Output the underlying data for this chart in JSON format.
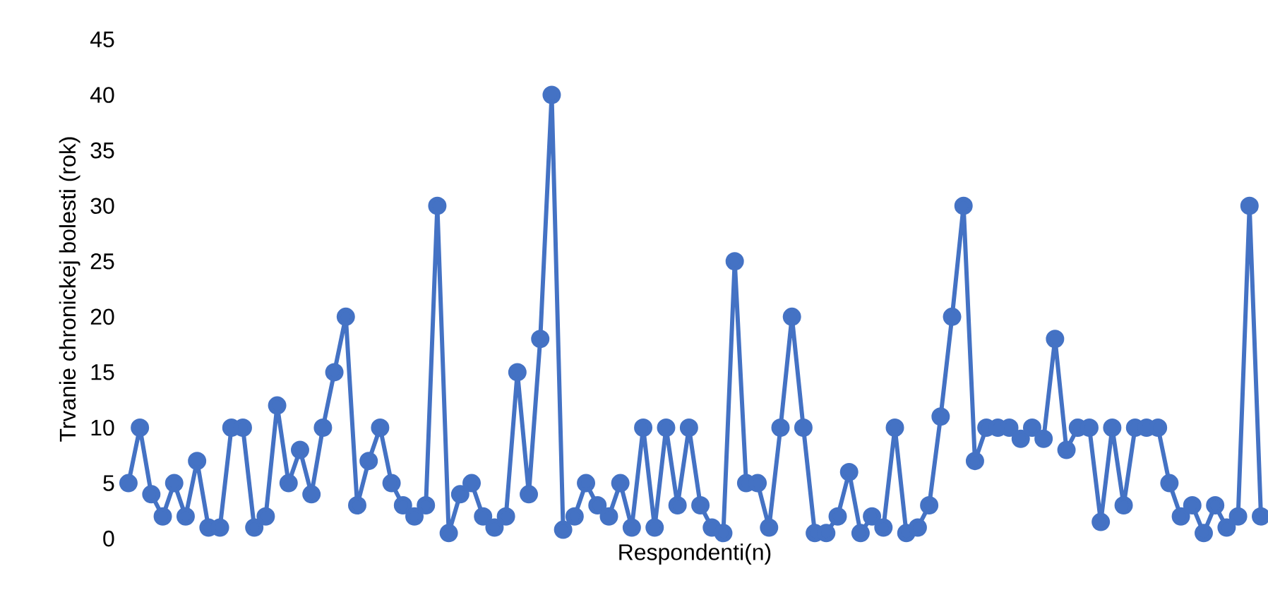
{
  "chart_data": {
    "type": "line",
    "xlabel": "Respondenti(n)",
    "ylabel": "Trvanie chronickej bolesti (rok)",
    "categories": [
      null,
      null,
      null,
      null,
      null,
      null,
      null,
      null,
      null,
      null,
      null,
      null,
      null,
      null,
      null,
      null,
      null,
      null,
      null,
      null,
      null,
      null,
      null,
      null,
      null,
      null,
      null,
      null,
      null,
      null,
      null,
      null,
      null,
      null,
      null,
      null,
      null,
      null,
      null,
      null,
      null,
      null,
      null,
      null,
      null,
      null,
      null,
      null,
      null,
      null,
      null,
      null,
      null,
      null,
      null,
      null,
      null,
      null,
      null,
      null,
      null,
      null,
      null,
      null,
      null,
      null,
      null,
      null,
      null,
      null,
      null,
      null,
      null,
      null,
      null,
      null,
      null,
      null,
      null,
      null,
      null,
      null,
      null,
      null,
      null,
      null,
      null,
      null,
      null,
      null,
      null,
      null,
      null,
      null,
      null,
      null,
      null,
      null,
      null,
      null
    ],
    "series": [
      {
        "color": "#4472c4",
        "values": [
          5,
          10,
          4,
          2,
          5,
          2,
          7,
          1,
          1,
          10,
          10,
          1,
          2,
          12,
          5,
          8,
          4,
          10,
          15,
          20,
          3,
          7,
          10,
          5,
          3,
          2,
          3,
          30,
          0.5,
          4,
          5,
          2,
          1,
          2,
          15,
          4,
          18,
          40,
          0.8,
          2,
          5,
          3,
          2,
          5,
          1,
          10,
          1,
          10,
          3,
          10,
          3,
          1,
          0.5,
          25,
          5,
          5,
          1,
          10,
          20,
          10,
          0.5,
          0.5,
          2,
          6,
          0.5,
          2,
          1,
          10,
          0.5,
          1,
          3,
          11,
          20,
          30,
          7,
          10,
          10,
          10,
          9,
          10,
          9,
          18,
          8,
          10,
          10,
          1.5,
          10,
          3,
          10,
          10,
          10,
          5,
          2,
          3,
          0.5,
          3,
          1,
          2,
          30,
          2
        ]
      }
    ],
    "ylim": [
      0,
      45
    ],
    "yticks": [
      0,
      5,
      10,
      15,
      20,
      25,
      30,
      35,
      40,
      45
    ],
    "grid": false,
    "marker": "circle",
    "line_style": "solid"
  }
}
